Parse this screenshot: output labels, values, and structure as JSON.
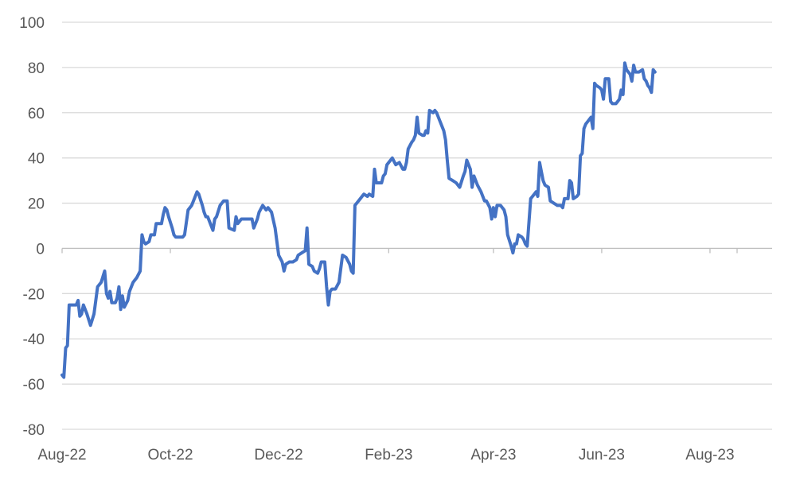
{
  "chart_data": {
    "type": "line",
    "title": "",
    "xlabel": "",
    "ylabel": "",
    "ylim": [
      -80,
      100
    ],
    "ytick_step": 20,
    "xlim": [
      "2022-08-01",
      "2023-09-05"
    ],
    "grid": true,
    "legend": "none",
    "x_tick_labels": [
      "Aug-22",
      "Oct-22",
      "Dec-22",
      "Feb-23",
      "Apr-23",
      "Jun-23",
      "Aug-23"
    ],
    "x_tick_dates": [
      "2022-08-01",
      "2022-10-01",
      "2022-12-01",
      "2023-02-01",
      "2023-04-01",
      "2023-06-01",
      "2023-08-01"
    ],
    "series": [
      {
        "name": "",
        "color": "#4472c4",
        "points": [
          [
            "2022-08-01",
            -56
          ],
          [
            "2022-08-02",
            -57
          ],
          [
            "2022-08-03",
            -44
          ],
          [
            "2022-08-04",
            -43
          ],
          [
            "2022-08-05",
            -25
          ],
          [
            "2022-08-08",
            -25
          ],
          [
            "2022-08-09",
            -25
          ],
          [
            "2022-08-10",
            -23
          ],
          [
            "2022-08-11",
            -30
          ],
          [
            "2022-08-12",
            -29
          ],
          [
            "2022-08-13",
            -25
          ],
          [
            "2022-08-15",
            -29
          ],
          [
            "2022-08-17",
            -34
          ],
          [
            "2022-08-19",
            -29
          ],
          [
            "2022-08-21",
            -17
          ],
          [
            "2022-08-23",
            -15
          ],
          [
            "2022-08-25",
            -10
          ],
          [
            "2022-08-26",
            -20
          ],
          [
            "2022-08-27",
            -22
          ],
          [
            "2022-08-28",
            -19
          ],
          [
            "2022-08-29",
            -24
          ],
          [
            "2022-08-31",
            -24
          ],
          [
            "2022-09-01",
            -22
          ],
          [
            "2022-09-02",
            -17
          ],
          [
            "2022-09-03",
            -27
          ],
          [
            "2022-09-04",
            -21
          ],
          [
            "2022-09-05",
            -26
          ],
          [
            "2022-09-07",
            -23
          ],
          [
            "2022-09-08",
            -19
          ],
          [
            "2022-09-10",
            -15
          ],
          [
            "2022-09-12",
            -13
          ],
          [
            "2022-09-14",
            -10
          ],
          [
            "2022-09-15",
            6
          ],
          [
            "2022-09-16",
            3
          ],
          [
            "2022-09-17",
            2
          ],
          [
            "2022-09-19",
            3
          ],
          [
            "2022-09-20",
            6
          ],
          [
            "2022-09-22",
            6
          ],
          [
            "2022-09-23",
            11
          ],
          [
            "2022-09-26",
            11
          ],
          [
            "2022-09-27",
            15
          ],
          [
            "2022-09-28",
            18
          ],
          [
            "2022-09-29",
            17
          ],
          [
            "2022-09-30",
            14
          ],
          [
            "2022-10-02",
            9
          ],
          [
            "2022-10-03",
            6
          ],
          [
            "2022-10-04",
            5
          ],
          [
            "2022-10-06",
            5
          ],
          [
            "2022-10-08",
            5
          ],
          [
            "2022-10-09",
            6
          ],
          [
            "2022-10-11",
            17
          ],
          [
            "2022-10-13",
            19
          ],
          [
            "2022-10-15",
            23
          ],
          [
            "2022-10-16",
            25
          ],
          [
            "2022-10-17",
            24
          ],
          [
            "2022-10-19",
            19
          ],
          [
            "2022-10-20",
            16
          ],
          [
            "2022-10-21",
            14
          ],
          [
            "2022-10-22",
            14
          ],
          [
            "2022-10-24",
            10
          ],
          [
            "2022-10-25",
            8
          ],
          [
            "2022-10-26",
            13
          ],
          [
            "2022-10-27",
            14
          ],
          [
            "2022-10-29",
            19
          ],
          [
            "2022-10-31",
            21
          ],
          [
            "2022-11-02",
            21
          ],
          [
            "2022-11-03",
            9
          ],
          [
            "2022-11-06",
            8
          ],
          [
            "2022-11-07",
            14
          ],
          [
            "2022-11-08",
            11
          ],
          [
            "2022-11-10",
            13
          ],
          [
            "2022-11-12",
            13
          ],
          [
            "2022-11-14",
            13
          ],
          [
            "2022-11-16",
            13
          ],
          [
            "2022-11-17",
            9
          ],
          [
            "2022-11-19",
            13
          ],
          [
            "2022-11-20",
            16
          ],
          [
            "2022-11-22",
            19
          ],
          [
            "2022-11-24",
            17
          ],
          [
            "2022-11-25",
            18
          ],
          [
            "2022-11-27",
            16
          ],
          [
            "2022-11-29",
            9
          ],
          [
            "2022-12-01",
            -3
          ],
          [
            "2022-12-03",
            -6
          ],
          [
            "2022-12-04",
            -10
          ],
          [
            "2022-12-05",
            -7
          ],
          [
            "2022-12-07",
            -6
          ],
          [
            "2022-12-09",
            -6
          ],
          [
            "2022-12-11",
            -5
          ],
          [
            "2022-12-12",
            -3
          ],
          [
            "2022-12-14",
            -2
          ],
          [
            "2022-12-16",
            -1
          ],
          [
            "2022-12-17",
            9
          ],
          [
            "2022-12-18",
            -7
          ],
          [
            "2022-12-20",
            -8
          ],
          [
            "2022-12-21",
            -10
          ],
          [
            "2022-12-23",
            -11
          ],
          [
            "2022-12-24",
            -9
          ],
          [
            "2022-12-25",
            -6
          ],
          [
            "2022-12-27",
            -6
          ],
          [
            "2022-12-28",
            -17
          ],
          [
            "2022-12-29",
            -25
          ],
          [
            "2022-12-30",
            -19
          ],
          [
            "2022-12-31",
            -18
          ],
          [
            "2023-01-02",
            -18
          ],
          [
            "2023-01-04",
            -15
          ],
          [
            "2023-01-05",
            -9
          ],
          [
            "2023-01-06",
            -3
          ],
          [
            "2023-01-08",
            -4
          ],
          [
            "2023-01-10",
            -7
          ],
          [
            "2023-01-11",
            -10
          ],
          [
            "2023-01-12",
            -11
          ],
          [
            "2023-01-13",
            19
          ],
          [
            "2023-01-15",
            21
          ],
          [
            "2023-01-17",
            23
          ],
          [
            "2023-01-18",
            24
          ],
          [
            "2023-01-20",
            23
          ],
          [
            "2023-01-21",
            24
          ],
          [
            "2023-01-23",
            23
          ],
          [
            "2023-01-24",
            35
          ],
          [
            "2023-01-25",
            29
          ],
          [
            "2023-01-26",
            29
          ],
          [
            "2023-01-28",
            29
          ],
          [
            "2023-01-29",
            32
          ],
          [
            "2023-01-30",
            33
          ],
          [
            "2023-01-31",
            37
          ],
          [
            "2023-02-03",
            40
          ],
          [
            "2023-02-05",
            37
          ],
          [
            "2023-02-07",
            38
          ],
          [
            "2023-02-09",
            35
          ],
          [
            "2023-02-10",
            35
          ],
          [
            "2023-02-11",
            38
          ],
          [
            "2023-02-12",
            44
          ],
          [
            "2023-02-14",
            47
          ],
          [
            "2023-02-15",
            48
          ],
          [
            "2023-02-16",
            50
          ],
          [
            "2023-02-17",
            58
          ],
          [
            "2023-02-18",
            51
          ],
          [
            "2023-02-20",
            50
          ],
          [
            "2023-02-21",
            50
          ],
          [
            "2023-02-22",
            52
          ],
          [
            "2023-02-23",
            51
          ],
          [
            "2023-02-24",
            61
          ],
          [
            "2023-02-26",
            60
          ],
          [
            "2023-02-27",
            61
          ],
          [
            "2023-02-28",
            60
          ],
          [
            "2023-03-02",
            56
          ],
          [
            "2023-03-04",
            52
          ],
          [
            "2023-03-05",
            48
          ],
          [
            "2023-03-06",
            39
          ],
          [
            "2023-03-07",
            31
          ],
          [
            "2023-03-09",
            30
          ],
          [
            "2023-03-11",
            29
          ],
          [
            "2023-03-13",
            27
          ],
          [
            "2023-03-15",
            32
          ],
          [
            "2023-03-16",
            34
          ],
          [
            "2023-03-17",
            39
          ],
          [
            "2023-03-19",
            35
          ],
          [
            "2023-03-20",
            27
          ],
          [
            "2023-03-21",
            32
          ],
          [
            "2023-03-23",
            28
          ],
          [
            "2023-03-25",
            25
          ],
          [
            "2023-03-26",
            23
          ],
          [
            "2023-03-27",
            21
          ],
          [
            "2023-03-28",
            21
          ],
          [
            "2023-03-30",
            18
          ],
          [
            "2023-03-31",
            13
          ],
          [
            "2023-04-01",
            18
          ],
          [
            "2023-04-02",
            14
          ],
          [
            "2023-04-03",
            19
          ],
          [
            "2023-04-05",
            19
          ],
          [
            "2023-04-07",
            17
          ],
          [
            "2023-04-08",
            14
          ],
          [
            "2023-04-09",
            6
          ],
          [
            "2023-04-11",
            1
          ],
          [
            "2023-04-12",
            -2
          ],
          [
            "2023-04-13",
            2
          ],
          [
            "2023-04-14",
            2
          ],
          [
            "2023-04-15",
            6
          ],
          [
            "2023-04-17",
            5
          ],
          [
            "2023-04-18",
            4
          ],
          [
            "2023-04-19",
            2
          ],
          [
            "2023-04-20",
            1
          ],
          [
            "2023-04-22",
            22
          ],
          [
            "2023-04-24",
            24
          ],
          [
            "2023-04-25",
            25
          ],
          [
            "2023-04-26",
            23
          ],
          [
            "2023-04-27",
            38
          ],
          [
            "2023-04-28",
            34
          ],
          [
            "2023-04-29",
            30
          ],
          [
            "2023-04-30",
            28
          ],
          [
            "2023-05-02",
            27
          ],
          [
            "2023-05-03",
            21
          ],
          [
            "2023-05-05",
            20
          ],
          [
            "2023-05-07",
            19
          ],
          [
            "2023-05-09",
            19
          ],
          [
            "2023-05-10",
            18
          ],
          [
            "2023-05-11",
            22
          ],
          [
            "2023-05-13",
            22
          ],
          [
            "2023-05-14",
            30
          ],
          [
            "2023-05-15",
            29
          ],
          [
            "2023-05-16",
            22
          ],
          [
            "2023-05-18",
            23
          ],
          [
            "2023-05-19",
            24
          ],
          [
            "2023-05-20",
            41
          ],
          [
            "2023-05-21",
            42
          ],
          [
            "2023-05-22",
            53
          ],
          [
            "2023-05-23",
            55
          ],
          [
            "2023-05-24",
            56
          ],
          [
            "2023-05-25",
            57
          ],
          [
            "2023-05-26",
            58
          ],
          [
            "2023-05-27",
            53
          ],
          [
            "2023-05-28",
            73
          ],
          [
            "2023-05-29",
            72
          ],
          [
            "2023-05-31",
            71
          ],
          [
            "2023-06-01",
            70
          ],
          [
            "2023-06-02",
            66
          ],
          [
            "2023-06-03",
            75
          ],
          [
            "2023-06-05",
            75
          ],
          [
            "2023-06-06",
            65
          ],
          [
            "2023-06-07",
            64
          ],
          [
            "2023-06-09",
            64
          ],
          [
            "2023-06-10",
            65
          ],
          [
            "2023-06-11",
            66
          ],
          [
            "2023-06-12",
            70
          ],
          [
            "2023-06-13",
            68
          ],
          [
            "2023-06-14",
            82
          ],
          [
            "2023-06-15",
            79
          ],
          [
            "2023-06-17",
            77
          ],
          [
            "2023-06-18",
            74
          ],
          [
            "2023-06-19",
            81
          ],
          [
            "2023-06-20",
            78
          ],
          [
            "2023-06-22",
            78
          ],
          [
            "2023-06-24",
            79
          ],
          [
            "2023-06-25",
            75
          ],
          [
            "2023-06-26",
            74
          ],
          [
            "2023-06-27",
            72
          ],
          [
            "2023-06-28",
            71
          ],
          [
            "2023-06-29",
            69
          ],
          [
            "2023-06-30",
            79
          ],
          [
            "2023-07-01",
            78
          ]
        ]
      }
    ]
  }
}
